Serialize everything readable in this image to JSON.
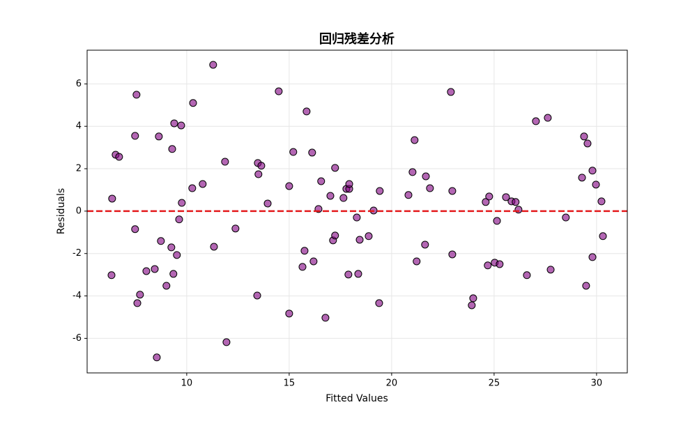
{
  "chart_data": {
    "type": "scatter",
    "title": "回归残差分析",
    "xlabel": "Fitted Values",
    "ylabel": "Residuals",
    "x": [
      6.36,
      6.33,
      6.53,
      6.7,
      7.55,
      7.48,
      7.48,
      7.59,
      7.72,
      8.03,
      8.44,
      8.54,
      8.74,
      8.64,
      9.01,
      9.25,
      9.29,
      9.39,
      9.35,
      9.52,
      9.63,
      9.73,
      9.76,
      10.27,
      10.31,
      10.78,
      11.29,
      11.33,
      11.87,
      11.94,
      12.38,
      13.47,
      13.64,
      13.5,
      13.44,
      13.95,
      14.49,
      15.0,
      15.2,
      15.0,
      15.65,
      15.75,
      15.85,
      16.12,
      16.19,
      16.43,
      16.56,
      16.77,
      17.01,
      17.14,
      17.24,
      17.24,
      17.65,
      17.79,
      17.93,
      17.93,
      17.89,
      18.3,
      18.37,
      18.44,
      18.88,
      19.12,
      19.42,
      19.39,
      20.82,
      21.02,
      21.12,
      21.22,
      21.63,
      21.67,
      21.87,
      22.89,
      22.96,
      22.96,
      23.91,
      23.98,
      24.59,
      24.69,
      24.76,
      25.03,
      25.14,
      25.27,
      25.58,
      25.85,
      26.05,
      26.19,
      26.6,
      27.04,
      27.62,
      27.76,
      28.5,
      29.29,
      29.39,
      29.56,
      29.49,
      29.8,
      29.8,
      29.97,
      30.24,
      30.31
    ],
    "y": [
      0.59,
      -3.02,
      2.66,
      2.56,
      5.49,
      3.55,
      -0.85,
      -4.34,
      -3.94,
      -2.83,
      -2.73,
      -6.9,
      -1.41,
      3.52,
      -3.52,
      -1.71,
      2.93,
      4.14,
      -2.96,
      -2.07,
      -0.39,
      4.04,
      0.39,
      1.08,
      5.1,
      1.28,
      6.9,
      -1.68,
      2.33,
      -6.18,
      -0.82,
      2.27,
      2.14,
      1.74,
      -3.98,
      0.36,
      5.65,
      1.18,
      2.79,
      -4.83,
      -2.63,
      -1.87,
      4.7,
      2.76,
      -2.37,
      0.1,
      1.41,
      -5.03,
      0.72,
      -1.38,
      -1.15,
      2.04,
      0.62,
      1.05,
      1.05,
      1.28,
      -2.99,
      -0.3,
      -2.96,
      -1.35,
      -1.18,
      0.03,
      0.95,
      -4.34,
      0.76,
      1.84,
      3.35,
      -2.37,
      -1.58,
      1.64,
      1.08,
      5.62,
      0.95,
      -2.04,
      -4.44,
      -4.11,
      0.43,
      -2.56,
      0.69,
      -2.43,
      -0.46,
      -2.5,
      0.66,
      0.46,
      0.43,
      0.07,
      -3.02,
      4.24,
      4.4,
      -2.76,
      -0.3,
      1.58,
      3.52,
      3.19,
      -3.52,
      1.91,
      -2.17,
      1.25,
      0.46,
      -1.18
    ],
    "color": "#800080",
    "edgecolor": "#000000",
    "xlim": [
      5.14,
      31.5
    ],
    "ylim": [
      -7.63,
      7.59
    ],
    "xticks": [
      10,
      15,
      20,
      25,
      30
    ],
    "yticks": [
      -6,
      -4,
      -2,
      0,
      2,
      4,
      6
    ],
    "hline": 0,
    "hline_color": "#e41a1c",
    "grid": true
  }
}
